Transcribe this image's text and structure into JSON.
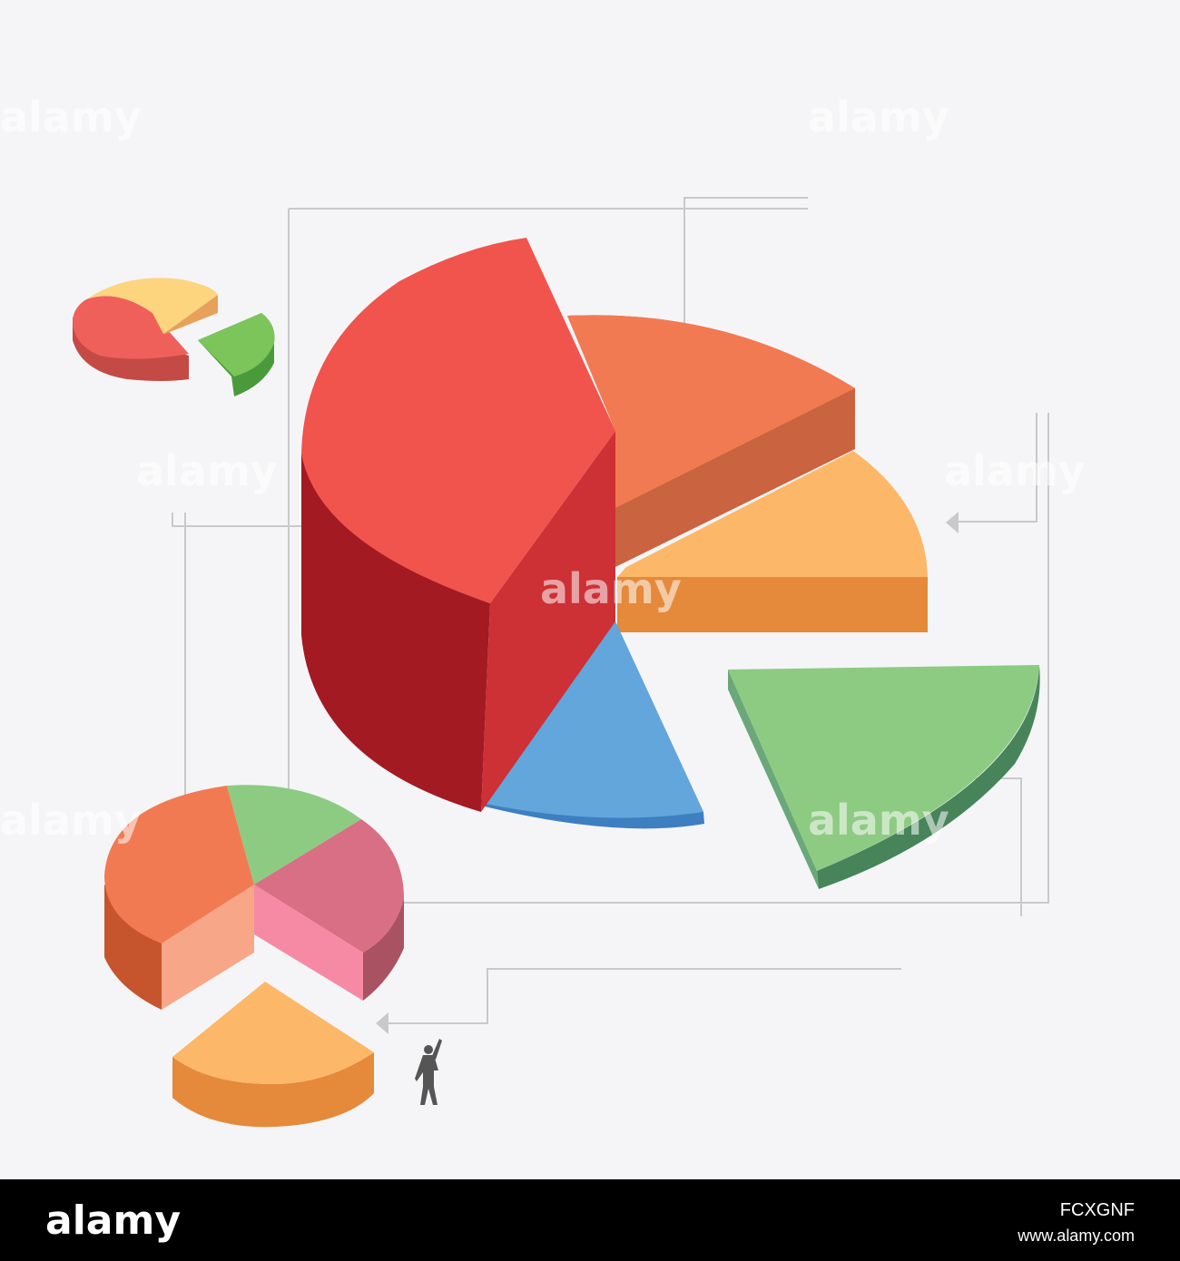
{
  "footer": {
    "logo": "alamy",
    "image_id": "FCXGNF",
    "url": "www.alamy.com"
  },
  "watermark": "alamy"
}
